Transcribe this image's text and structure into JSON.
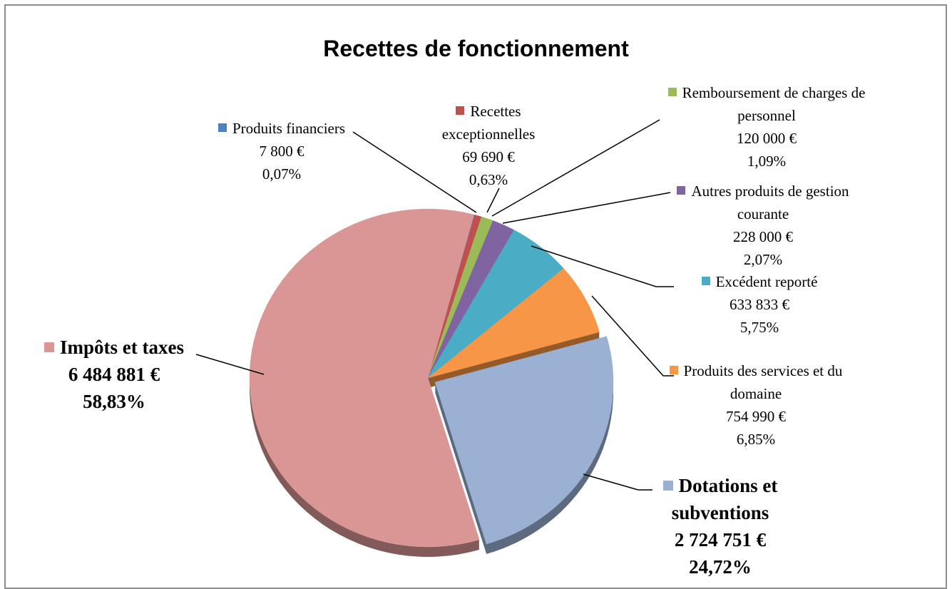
{
  "chart_data": {
    "type": "pie",
    "title": "Recettes de fonctionnement",
    "categories": [
      "Produits financiers",
      "Recettes exceptionnelles",
      "Remboursement de charges de personnel",
      "Autres produits de gestion courante",
      "Excédent reporté",
      "Produits des services et du domaine",
      "Dotations et subventions",
      "Impôts et taxes"
    ],
    "values": [
      7800,
      69690,
      120000,
      228000,
      633833,
      754990,
      2724751,
      6484881
    ],
    "value_labels": [
      "7 800 €",
      "69 690 €",
      "120 000 €",
      "228 000 €",
      "633 833 €",
      "754 990 €",
      "2 724 751 €",
      "6 484 881 €"
    ],
    "percent_labels": [
      "0,07%",
      "0,63%",
      "1,09%",
      "2,07%",
      "5,75%",
      "6,85%",
      "24,72%",
      "58,83%"
    ],
    "colors": [
      "#4f81bd",
      "#c0504d",
      "#9bbb59",
      "#8064a2",
      "#4bacc6",
      "#f79646",
      "#9bb1d4",
      "#d99694"
    ]
  }
}
